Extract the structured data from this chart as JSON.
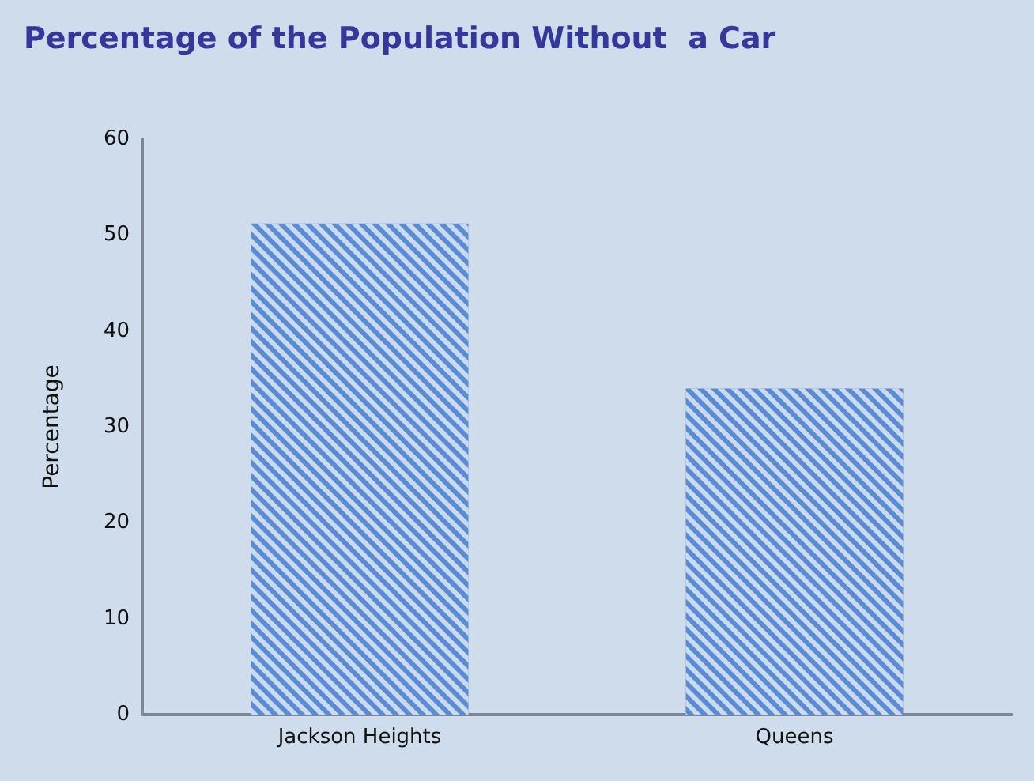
{
  "chart_data": {
    "type": "bar",
    "title": "Percentage of the Population Without  a Car",
    "ylabel": "Percentage",
    "categories": [
      "Jackson Heights",
      "Queens"
    ],
    "values": [
      51.2,
      34.0
    ],
    "color": "#5b8bd0",
    "ylim": [
      0,
      60
    ],
    "yticks": [
      0,
      10,
      20,
      30,
      40,
      50,
      60
    ]
  }
}
